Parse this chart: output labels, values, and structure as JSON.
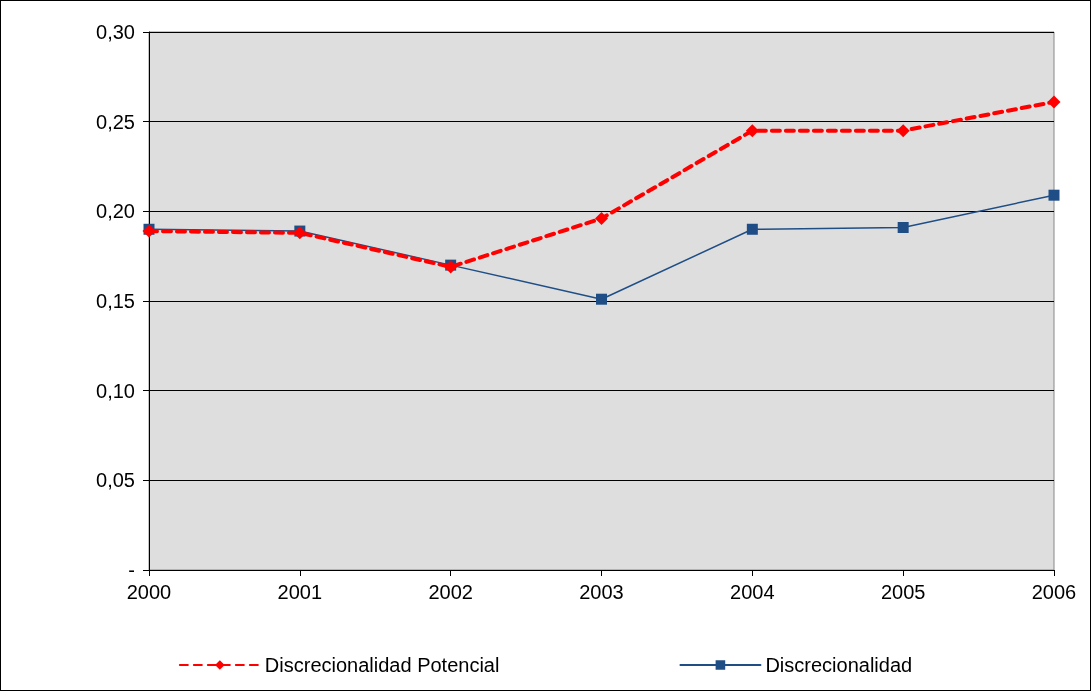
{
  "chart_data": {
    "type": "line",
    "categories": [
      "2000",
      "2001",
      "2002",
      "2003",
      "2004",
      "2005",
      "2006"
    ],
    "series": [
      {
        "name": "Discrecionalidad Potencial",
        "color": "#ff0000",
        "marker": "diamond",
        "line_style": "dashed",
        "values": [
          0.189,
          0.188,
          0.169,
          0.196,
          0.245,
          0.245,
          0.261
        ]
      },
      {
        "name": "Discrecionalidad",
        "color": "#1f4e86",
        "marker": "square",
        "line_style": "solid",
        "values": [
          0.19,
          0.189,
          0.17,
          0.151,
          0.19,
          0.191,
          0.209
        ]
      }
    ],
    "ylim": [
      0,
      0.3
    ],
    "yticks": [
      {
        "value": 0,
        "label": "-"
      },
      {
        "value": 0.05,
        "label": "0,05"
      },
      {
        "value": 0.1,
        "label": "0,10"
      },
      {
        "value": 0.15,
        "label": "0,15"
      },
      {
        "value": 0.2,
        "label": "0,20"
      },
      {
        "value": 0.25,
        "label": "0,25"
      },
      {
        "value": 0.3,
        "label": "0,30"
      }
    ],
    "grid": "y",
    "legend": "bottom"
  }
}
